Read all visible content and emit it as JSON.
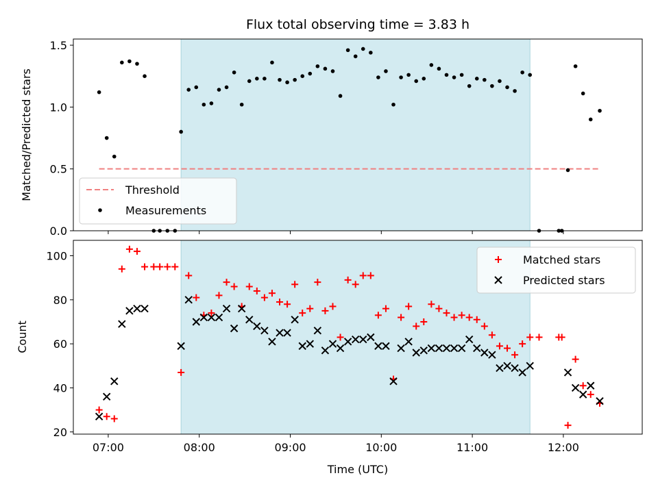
{
  "chart_data": [
    {
      "type": "scatter",
      "title": "Flux total observing time = 3.83 h",
      "ylabel": "Matched/Predicted stars",
      "xlabel": "",
      "ylim": [
        0,
        1.55
      ],
      "yticks": [
        "0.0",
        "0.5",
        "1.0",
        "1.5"
      ],
      "ytick_values": [
        0,
        0.5,
        1.0,
        1.5
      ],
      "xlim": [
        "06:37",
        "12:52"
      ],
      "shaded_interval": [
        "07:48",
        "11:38"
      ],
      "shade_color": "#d3ebf1",
      "threshold": {
        "name": "Threshold",
        "value": 0.5,
        "x_start": "06:54",
        "x_end": "12:24",
        "color": "#f08080"
      },
      "legend": {
        "placement": "lower-left",
        "entries": [
          "Threshold",
          "Measurements"
        ]
      },
      "series": [
        {
          "name": "Measurements",
          "color": "#000000",
          "points": [
            [
              "06:54",
              1.12
            ],
            [
              "06:59",
              0.75
            ],
            [
              "07:04",
              0.6
            ],
            [
              "07:09",
              1.36
            ],
            [
              "07:14",
              1.37
            ],
            [
              "07:19",
              1.35
            ],
            [
              "07:24",
              1.25
            ],
            [
              "07:30",
              0
            ],
            [
              "07:34",
              0
            ],
            [
              "07:39",
              0
            ],
            [
              "07:44",
              0
            ],
            [
              "07:48",
              0.8
            ],
            [
              "07:53",
              1.14
            ],
            [
              "07:58",
              1.16
            ],
            [
              "08:03",
              1.02
            ],
            [
              "08:08",
              1.03
            ],
            [
              "08:13",
              1.14
            ],
            [
              "08:18",
              1.16
            ],
            [
              "08:23",
              1.28
            ],
            [
              "08:28",
              1.02
            ],
            [
              "08:33",
              1.21
            ],
            [
              "08:38",
              1.23
            ],
            [
              "08:43",
              1.23
            ],
            [
              "08:48",
              1.36
            ],
            [
              "08:53",
              1.22
            ],
            [
              "08:58",
              1.2
            ],
            [
              "09:03",
              1.22
            ],
            [
              "09:08",
              1.25
            ],
            [
              "09:13",
              1.27
            ],
            [
              "09:18",
              1.33
            ],
            [
              "09:23",
              1.31
            ],
            [
              "09:28",
              1.29
            ],
            [
              "09:33",
              1.09
            ],
            [
              "09:38",
              1.46
            ],
            [
              "09:43",
              1.41
            ],
            [
              "09:48",
              1.47
            ],
            [
              "09:53",
              1.44
            ],
            [
              "09:58",
              1.24
            ],
            [
              "10:03",
              1.29
            ],
            [
              "10:08",
              1.02
            ],
            [
              "10:13",
              1.24
            ],
            [
              "10:18",
              1.26
            ],
            [
              "10:23",
              1.21
            ],
            [
              "10:28",
              1.23
            ],
            [
              "10:33",
              1.34
            ],
            [
              "10:38",
              1.31
            ],
            [
              "10:43",
              1.26
            ],
            [
              "10:48",
              1.24
            ],
            [
              "10:53",
              1.26
            ],
            [
              "10:58",
              1.17
            ],
            [
              "11:03",
              1.23
            ],
            [
              "11:08",
              1.22
            ],
            [
              "11:13",
              1.17
            ],
            [
              "11:18",
              1.21
            ],
            [
              "11:23",
              1.16
            ],
            [
              "11:28",
              1.13
            ],
            [
              "11:33",
              1.28
            ],
            [
              "11:38",
              1.26
            ],
            [
              "11:44",
              0
            ],
            [
              "11:57",
              0
            ],
            [
              "11:59",
              0
            ],
            [
              "12:03",
              0.49
            ],
            [
              "12:08",
              1.33
            ],
            [
              "12:13",
              1.11
            ],
            [
              "12:18",
              0.9
            ],
            [
              "12:24",
              0.97
            ]
          ]
        }
      ]
    },
    {
      "type": "scatter",
      "title": "",
      "ylabel": "Count",
      "xlabel": "Time (UTC)",
      "ylim": [
        19,
        107
      ],
      "yticks": [
        "20",
        "40",
        "60",
        "80",
        "100"
      ],
      "ytick_values": [
        20,
        40,
        60,
        80,
        100
      ],
      "xlim": [
        "06:37",
        "12:52"
      ],
      "xticks": [
        "07:00",
        "08:00",
        "09:00",
        "10:00",
        "11:00",
        "12:00"
      ],
      "shaded_interval": [
        "07:48",
        "11:38"
      ],
      "shade_color": "#d3ebf1",
      "legend": {
        "placement": "top-right",
        "entries": [
          "Matched stars",
          "Predicted stars"
        ]
      },
      "series": [
        {
          "name": "Matched stars",
          "marker": "plus",
          "color": "#ff0000",
          "points": [
            [
              "06:54",
              30
            ],
            [
              "06:59",
              27
            ],
            [
              "07:04",
              26
            ],
            [
              "07:09",
              94
            ],
            [
              "07:14",
              103
            ],
            [
              "07:19",
              102
            ],
            [
              "07:24",
              95
            ],
            [
              "07:30",
              95
            ],
            [
              "07:34",
              95
            ],
            [
              "07:39",
              95
            ],
            [
              "07:44",
              95
            ],
            [
              "07:48",
              47
            ],
            [
              "07:53",
              91
            ],
            [
              "07:58",
              81
            ],
            [
              "08:03",
              73
            ],
            [
              "08:08",
              74
            ],
            [
              "08:13",
              82
            ],
            [
              "08:18",
              88
            ],
            [
              "08:23",
              86
            ],
            [
              "08:28",
              77
            ],
            [
              "08:33",
              86
            ],
            [
              "08:38",
              84
            ],
            [
              "08:43",
              81
            ],
            [
              "08:48",
              83
            ],
            [
              "08:53",
              79
            ],
            [
              "08:58",
              78
            ],
            [
              "09:03",
              87
            ],
            [
              "09:08",
              74
            ],
            [
              "09:13",
              76
            ],
            [
              "09:18",
              88
            ],
            [
              "09:23",
              75
            ],
            [
              "09:28",
              77
            ],
            [
              "09:33",
              63
            ],
            [
              "09:38",
              89
            ],
            [
              "09:43",
              87
            ],
            [
              "09:48",
              91
            ],
            [
              "09:53",
              91
            ],
            [
              "09:58",
              73
            ],
            [
              "10:03",
              76
            ],
            [
              "10:08",
              44
            ],
            [
              "10:13",
              72
            ],
            [
              "10:18",
              77
            ],
            [
              "10:23",
              68
            ],
            [
              "10:28",
              70
            ],
            [
              "10:33",
              78
            ],
            [
              "10:38",
              76
            ],
            [
              "10:43",
              74
            ],
            [
              "10:48",
              72
            ],
            [
              "10:53",
              73
            ],
            [
              "10:58",
              72
            ],
            [
              "11:03",
              71
            ],
            [
              "11:08",
              68
            ],
            [
              "11:13",
              64
            ],
            [
              "11:18",
              59
            ],
            [
              "11:23",
              58
            ],
            [
              "11:28",
              55
            ],
            [
              "11:33",
              60
            ],
            [
              "11:38",
              63
            ],
            [
              "11:44",
              63
            ],
            [
              "11:57",
              63
            ],
            [
              "11:59",
              63
            ],
            [
              "12:03",
              23
            ],
            [
              "12:08",
              53
            ],
            [
              "12:13",
              41
            ],
            [
              "12:18",
              37
            ],
            [
              "12:24",
              33
            ]
          ]
        },
        {
          "name": "Predicted stars",
          "marker": "x",
          "color": "#000000",
          "points": [
            [
              "06:54",
              27
            ],
            [
              "06:59",
              36
            ],
            [
              "07:04",
              43
            ],
            [
              "07:09",
              69
            ],
            [
              "07:14",
              75
            ],
            [
              "07:19",
              76
            ],
            [
              "07:24",
              76
            ],
            [
              "07:48",
              59
            ],
            [
              "07:53",
              80
            ],
            [
              "07:58",
              70
            ],
            [
              "08:03",
              72
            ],
            [
              "08:08",
              72
            ],
            [
              "08:13",
              72
            ],
            [
              "08:18",
              76
            ],
            [
              "08:23",
              67
            ],
            [
              "08:28",
              76
            ],
            [
              "08:33",
              71
            ],
            [
              "08:38",
              68
            ],
            [
              "08:43",
              66
            ],
            [
              "08:48",
              61
            ],
            [
              "08:53",
              65
            ],
            [
              "08:58",
              65
            ],
            [
              "09:03",
              71
            ],
            [
              "09:08",
              59
            ],
            [
              "09:13",
              60
            ],
            [
              "09:18",
              66
            ],
            [
              "09:23",
              57
            ],
            [
              "09:28",
              60
            ],
            [
              "09:33",
              58
            ],
            [
              "09:38",
              61
            ],
            [
              "09:43",
              62
            ],
            [
              "09:48",
              62
            ],
            [
              "09:53",
              63
            ],
            [
              "09:58",
              59
            ],
            [
              "10:03",
              59
            ],
            [
              "10:08",
              43
            ],
            [
              "10:13",
              58
            ],
            [
              "10:18",
              61
            ],
            [
              "10:23",
              56
            ],
            [
              "10:28",
              57
            ],
            [
              "10:33",
              58
            ],
            [
              "10:38",
              58
            ],
            [
              "10:43",
              58
            ],
            [
              "10:48",
              58
            ],
            [
              "10:53",
              58
            ],
            [
              "10:58",
              62
            ],
            [
              "11:03",
              58
            ],
            [
              "11:08",
              56
            ],
            [
              "11:13",
              55
            ],
            [
              "11:18",
              49
            ],
            [
              "11:23",
              50
            ],
            [
              "11:28",
              49
            ],
            [
              "11:33",
              47
            ],
            [
              "11:38",
              50
            ],
            [
              "12:03",
              47
            ],
            [
              "12:08",
              40
            ],
            [
              "12:13",
              37
            ],
            [
              "12:18",
              41
            ],
            [
              "12:24",
              34
            ]
          ]
        }
      ]
    }
  ]
}
